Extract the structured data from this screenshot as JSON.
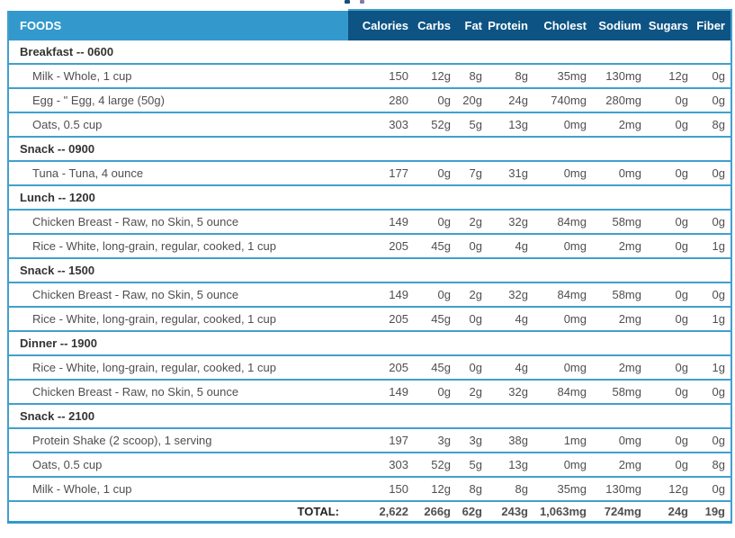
{
  "table": {
    "foods_header": "FOODS",
    "columns": [
      "Calories",
      "Carbs",
      "Fat",
      "Protein",
      "Cholest",
      "Sodium",
      "Sugars",
      "Fiber"
    ],
    "sections": [
      {
        "label": "Breakfast -- 0600",
        "items": [
          {
            "name": "Milk - Whole, 1 cup",
            "values": [
              "150",
              "12g",
              "8g",
              "8g",
              "35mg",
              "130mg",
              "12g",
              "0g"
            ]
          },
          {
            "name": "Egg - \" Egg, 4 large (50g)",
            "values": [
              "280",
              "0g",
              "20g",
              "24g",
              "740mg",
              "280mg",
              "0g",
              "0g"
            ]
          },
          {
            "name": "Oats, 0.5 cup",
            "values": [
              "303",
              "52g",
              "5g",
              "13g",
              "0mg",
              "2mg",
              "0g",
              "8g"
            ]
          }
        ]
      },
      {
        "label": "Snack -- 0900",
        "items": [
          {
            "name": "Tuna - Tuna, 4 ounce",
            "values": [
              "177",
              "0g",
              "7g",
              "31g",
              "0mg",
              "0mg",
              "0g",
              "0g"
            ]
          }
        ]
      },
      {
        "label": "Lunch -- 1200",
        "items": [
          {
            "name": "Chicken Breast - Raw, no Skin, 5 ounce",
            "values": [
              "149",
              "0g",
              "2g",
              "32g",
              "84mg",
              "58mg",
              "0g",
              "0g"
            ]
          },
          {
            "name": "Rice - White, long-grain, regular, cooked, 1 cup",
            "values": [
              "205",
              "45g",
              "0g",
              "4g",
              "0mg",
              "2mg",
              "0g",
              "1g"
            ]
          }
        ]
      },
      {
        "label": "Snack -- 1500",
        "items": [
          {
            "name": "Chicken Breast - Raw, no Skin, 5 ounce",
            "values": [
              "149",
              "0g",
              "2g",
              "32g",
              "84mg",
              "58mg",
              "0g",
              "0g"
            ]
          },
          {
            "name": "Rice - White, long-grain, regular, cooked, 1 cup",
            "values": [
              "205",
              "45g",
              "0g",
              "4g",
              "0mg",
              "2mg",
              "0g",
              "1g"
            ]
          }
        ]
      },
      {
        "label": "Dinner -- 1900",
        "items": [
          {
            "name": "Rice - White, long-grain, regular, cooked, 1 cup",
            "values": [
              "205",
              "45g",
              "0g",
              "4g",
              "0mg",
              "2mg",
              "0g",
              "1g"
            ]
          },
          {
            "name": "Chicken Breast - Raw, no Skin, 5 ounce",
            "values": [
              "149",
              "0g",
              "2g",
              "32g",
              "84mg",
              "58mg",
              "0g",
              "0g"
            ]
          }
        ]
      },
      {
        "label": "Snack -- 2100",
        "items": [
          {
            "name": "Protein Shake (2 scoop), 1 serving",
            "values": [
              "197",
              "3g",
              "3g",
              "38g",
              "1mg",
              "0mg",
              "0g",
              "0g"
            ]
          },
          {
            "name": "Oats, 0.5 cup",
            "values": [
              "303",
              "52g",
              "5g",
              "13g",
              "0mg",
              "2mg",
              "0g",
              "8g"
            ]
          },
          {
            "name": "Milk - Whole, 1 cup",
            "values": [
              "150",
              "12g",
              "8g",
              "8g",
              "35mg",
              "130mg",
              "12g",
              "0g"
            ]
          }
        ]
      }
    ],
    "total": {
      "label": "TOTAL:",
      "values": [
        "2,622",
        "266g",
        "62g",
        "243g",
        "1,063mg",
        "724mg",
        "24g",
        "19g"
      ]
    }
  },
  "colors": {
    "header_light_blue": "#3399cc",
    "header_dark_blue": "#0d5484",
    "row_separator_blue": "#41a0cc"
  }
}
